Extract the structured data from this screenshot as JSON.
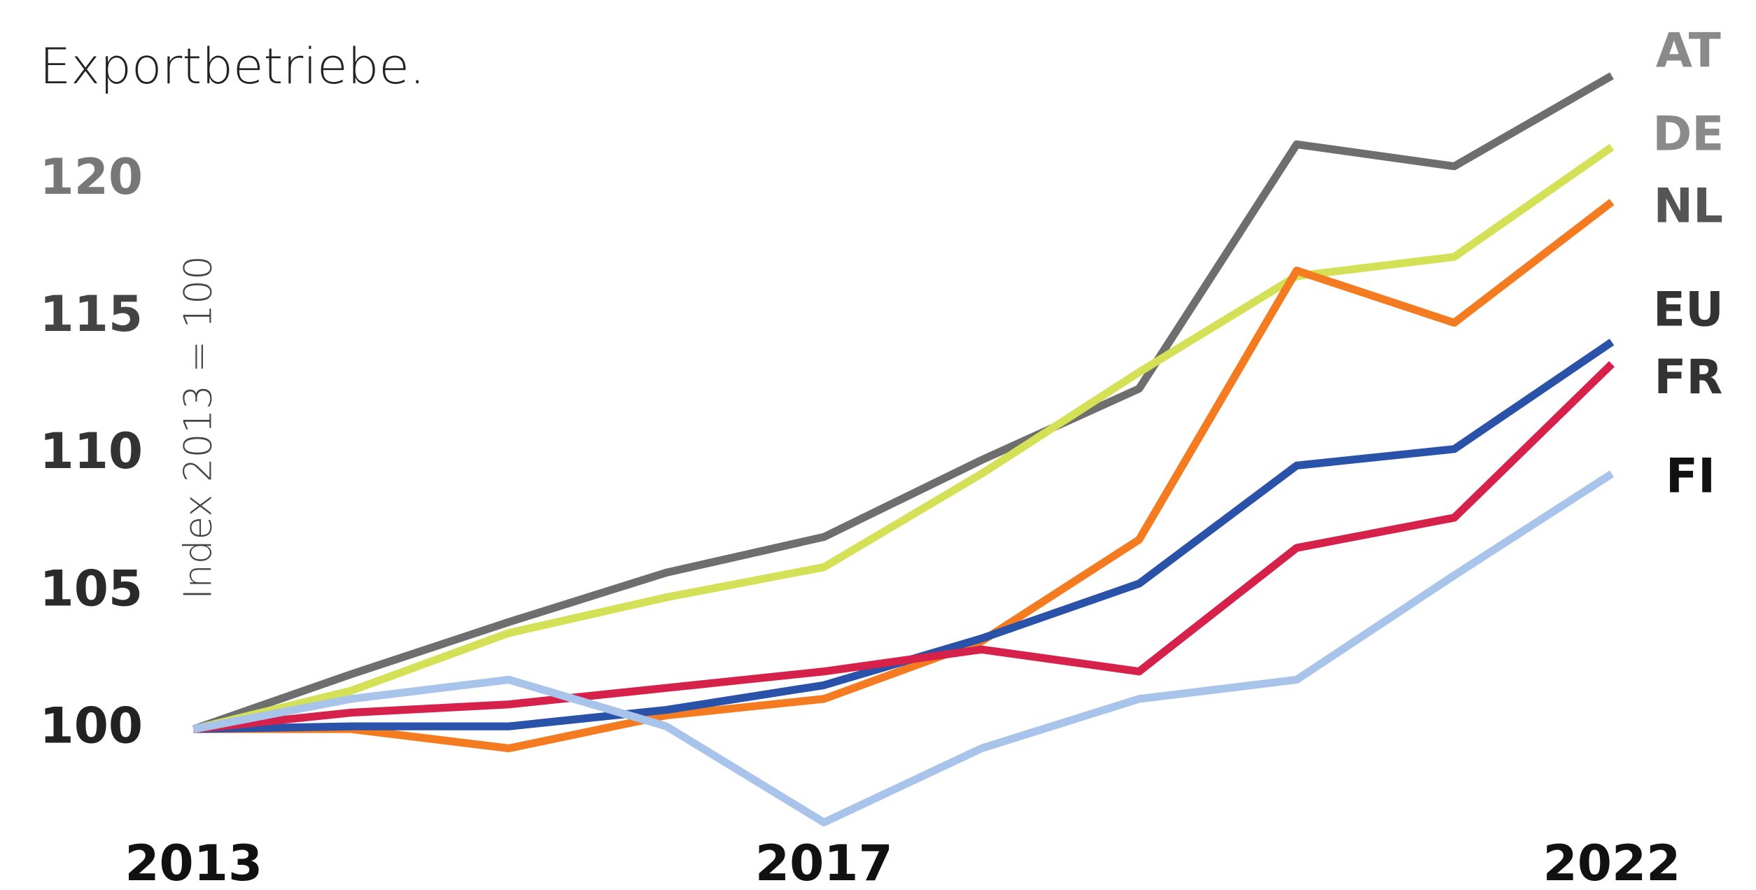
{
  "chart_data": {
    "type": "line",
    "subtitle": "Exportbetriebe.",
    "y_label": "Index 2013 = 100",
    "x": [
      2013,
      2014,
      2015,
      2016,
      2017,
      2018,
      2019,
      2020,
      2021,
      2022
    ],
    "xlim": [
      2013,
      2022
    ],
    "xticks": [
      2013,
      2017,
      2022
    ],
    "ylim": [
      96,
      125
    ],
    "yticks": [
      100,
      105,
      110,
      115,
      120
    ],
    "grid": false,
    "series": [
      {
        "name": "AT",
        "color": "#6e6e6e",
        "values": [
          100,
          102.0,
          103.9,
          105.7,
          107.0,
          109.8,
          112.4,
          121.3,
          120.5,
          123.8
        ]
      },
      {
        "name": "DE",
        "color": "#d4e157",
        "values": [
          100,
          101.4,
          103.5,
          104.8,
          105.9,
          109.3,
          113.0,
          116.5,
          117.2,
          121.2
        ]
      },
      {
        "name": "NL",
        "color": "#f47b20",
        "values": [
          100,
          100.0,
          99.3,
          100.5,
          101.1,
          103.2,
          106.9,
          116.7,
          114.8,
          119.2
        ]
      },
      {
        "name": "EU",
        "color": "#2a52a8",
        "values": [
          100,
          100.1,
          100.1,
          100.7,
          101.6,
          103.3,
          105.3,
          109.6,
          110.2,
          114.1
        ]
      },
      {
        "name": "FR",
        "color": "#d6214a",
        "values": [
          100,
          100.6,
          100.9,
          101.5,
          102.1,
          102.9,
          102.1,
          106.6,
          107.7,
          113.3
        ]
      },
      {
        "name": "FI",
        "color": "#a9c4ea",
        "values": [
          100,
          101.1,
          101.8,
          100.1,
          96.6,
          99.3,
          101.1,
          101.8,
          105.6,
          109.3
        ]
      }
    ]
  }
}
